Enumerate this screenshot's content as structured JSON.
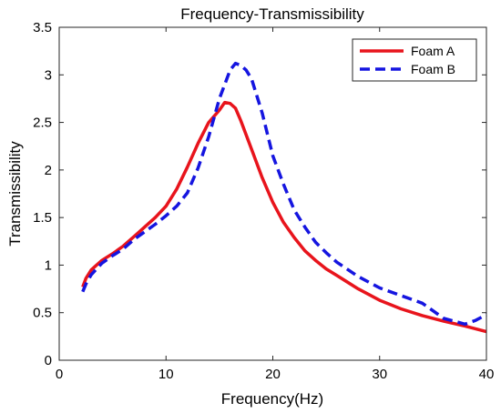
{
  "chart_data": {
    "type": "line",
    "title": "Frequency-Transmissibility",
    "xlabel": "Frequency(Hz)",
    "ylabel": "Transmissibility",
    "xlim": [
      0,
      40
    ],
    "ylim": [
      0,
      3.5
    ],
    "xticks": [
      0,
      10,
      20,
      30,
      40
    ],
    "xtick_labels": [
      "0",
      "10",
      "20",
      "30",
      "40"
    ],
    "yticks": [
      0,
      0.5,
      1,
      1.5,
      2,
      2.5,
      3,
      3.5
    ],
    "ytick_labels": [
      "0",
      "0.5",
      "1",
      "1.5",
      "2",
      "2.5",
      "3",
      "3.5"
    ],
    "grid": false,
    "legend_position": "top-right",
    "series": [
      {
        "name": "Foam A",
        "color": "#e8141c",
        "style": "solid",
        "x": [
          2.2,
          2.5,
          3,
          3.5,
          4,
          5,
          6,
          7,
          8,
          9,
          10,
          11,
          12,
          13,
          14,
          15,
          15.5,
          16,
          16.5,
          17,
          18,
          19,
          20,
          21,
          22,
          23,
          24,
          25,
          26,
          28,
          30,
          32,
          34,
          36,
          38,
          40
        ],
        "y": [
          0.77,
          0.86,
          0.95,
          1.0,
          1.05,
          1.12,
          1.2,
          1.3,
          1.4,
          1.5,
          1.62,
          1.8,
          2.03,
          2.28,
          2.5,
          2.63,
          2.71,
          2.7,
          2.65,
          2.52,
          2.22,
          1.92,
          1.66,
          1.45,
          1.29,
          1.15,
          1.05,
          0.96,
          0.89,
          0.75,
          0.63,
          0.54,
          0.47,
          0.41,
          0.36,
          0.3
        ]
      },
      {
        "name": "Foam B",
        "color": "#1515e0",
        "style": "dashed",
        "x": [
          2.2,
          2.5,
          3,
          3.5,
          4,
          5,
          6,
          7,
          8,
          9,
          10,
          11,
          12,
          13,
          14,
          15,
          16,
          16.5,
          17,
          17.5,
          18,
          19,
          20,
          21,
          22,
          23,
          24,
          25,
          26,
          28,
          30,
          32,
          34,
          36,
          38,
          39,
          40
        ],
        "y": [
          0.72,
          0.8,
          0.9,
          0.96,
          1.02,
          1.1,
          1.17,
          1.27,
          1.35,
          1.43,
          1.52,
          1.62,
          1.76,
          2.02,
          2.35,
          2.75,
          3.05,
          3.12,
          3.1,
          3.05,
          2.96,
          2.6,
          2.15,
          1.85,
          1.58,
          1.4,
          1.24,
          1.13,
          1.03,
          0.88,
          0.76,
          0.68,
          0.6,
          0.44,
          0.38,
          0.42,
          0.48
        ]
      }
    ]
  }
}
